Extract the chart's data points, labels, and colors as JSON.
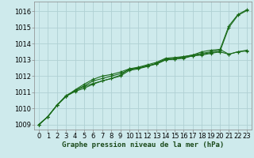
{
  "title": "Graphe pression niveau de la mer (hPa)",
  "bg_color": "#ceeaec",
  "grid_color": "#b0d0d4",
  "line_color": "#1a6b1a",
  "marker_color": "#1a6b1a",
  "xlim": [
    -0.5,
    23.5
  ],
  "ylim": [
    1008.7,
    1016.6
  ],
  "yticks": [
    1009,
    1010,
    1011,
    1012,
    1013,
    1014,
    1015,
    1016
  ],
  "xticks": [
    0,
    1,
    2,
    3,
    4,
    5,
    6,
    7,
    8,
    9,
    10,
    11,
    12,
    13,
    14,
    15,
    16,
    17,
    18,
    19,
    20,
    21,
    22,
    23
  ],
  "series": [
    [
      1009.0,
      1009.5,
      1010.2,
      1010.8,
      1011.1,
      1011.35,
      1011.55,
      1011.7,
      1011.85,
      1012.05,
      1012.45,
      1012.5,
      1012.6,
      1012.8,
      1013.05,
      1013.1,
      1013.2,
      1013.3,
      1013.4,
      1013.5,
      1013.6,
      1015.1,
      1015.8,
      1016.1
    ],
    [
      1009.0,
      1009.5,
      1010.2,
      1010.75,
      1011.1,
      1011.4,
      1011.7,
      1011.85,
      1012.0,
      1012.15,
      1012.4,
      1012.5,
      1012.65,
      1012.75,
      1013.0,
      1013.05,
      1013.15,
      1013.25,
      1013.3,
      1013.4,
      1013.5,
      1013.35,
      1013.5,
      1013.55
    ],
    [
      1009.0,
      1009.5,
      1010.2,
      1010.75,
      1011.15,
      1011.5,
      1011.8,
      1012.0,
      1012.1,
      1012.25,
      1012.45,
      1012.55,
      1012.7,
      1012.85,
      1013.1,
      1013.15,
      1013.2,
      1013.3,
      1013.5,
      1013.6,
      1013.65,
      1013.35,
      1013.5,
      1013.6
    ],
    [
      1009.0,
      1009.5,
      1010.2,
      1010.75,
      1011.05,
      1011.25,
      1011.5,
      1011.7,
      1011.85,
      1012.0,
      1012.35,
      1012.45,
      1012.6,
      1012.75,
      1013.0,
      1013.05,
      1013.1,
      1013.25,
      1013.35,
      1013.45,
      1013.5,
      1015.0,
      1015.75,
      1016.05
    ]
  ],
  "tick_fontsize": 6,
  "label_fontsize": 6.5,
  "line_width": 0.8,
  "marker_size": 3.5
}
